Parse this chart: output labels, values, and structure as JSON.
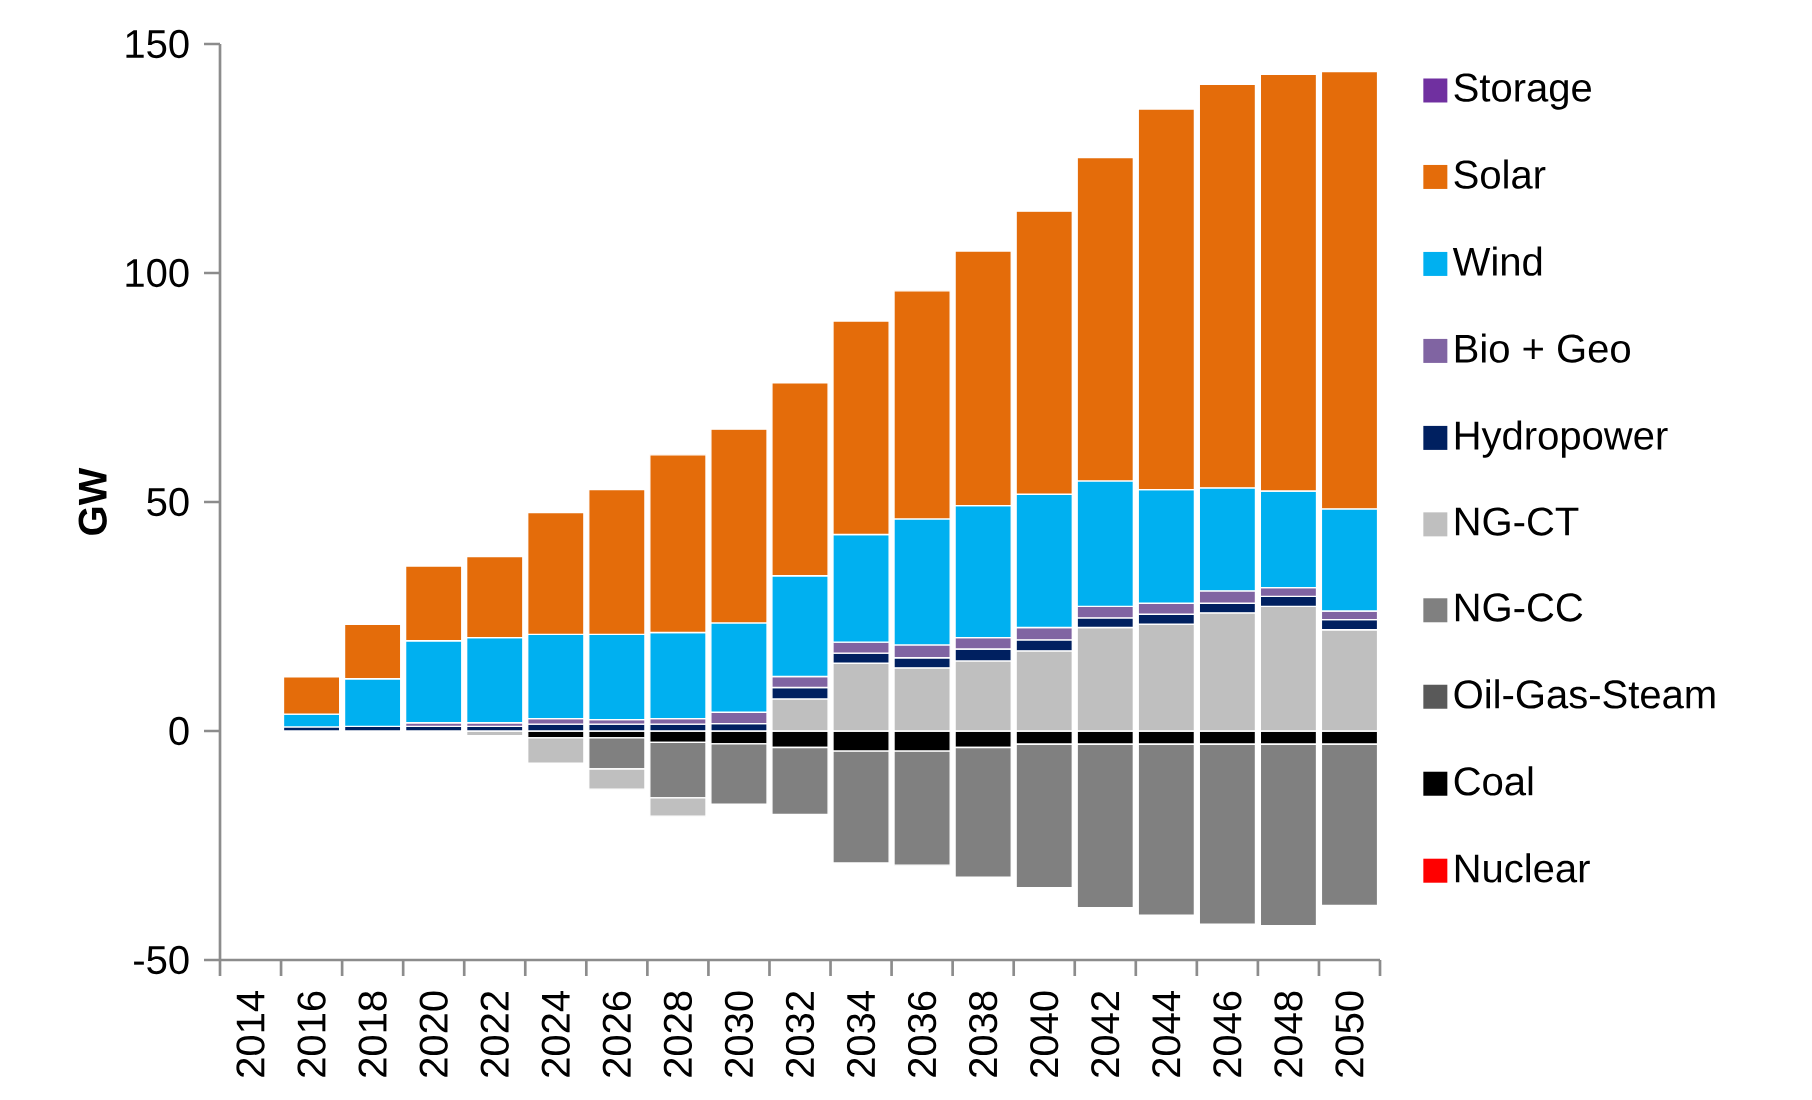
{
  "chart_data": {
    "type": "bar",
    "stacked": true,
    "ylabel": "GW",
    "categories": [
      "2014",
      "2016",
      "2018",
      "2020",
      "2022",
      "2024",
      "2026",
      "2028",
      "2030",
      "2032",
      "2034",
      "2036",
      "2038",
      "2040",
      "2042",
      "2044",
      "2046",
      "2048",
      "2050"
    ],
    "series": [
      {
        "name": "Nuclear",
        "color": "#ff0000",
        "values": [
          0,
          0,
          0,
          0,
          0,
          0,
          0,
          0,
          0,
          0,
          0,
          0,
          0,
          0,
          0,
          0,
          0,
          0,
          0
        ]
      },
      {
        "name": "Coal",
        "color": "#000000",
        "values": [
          0,
          0,
          0,
          0,
          0,
          -1.5,
          -1.5,
          -2.5,
          -2.8,
          -3.6,
          -4.4,
          -4.4,
          -3.6,
          -2.9,
          -2.9,
          -2.9,
          -2.9,
          -2.9,
          -2.9
        ]
      },
      {
        "name": "Oil-Gas-Steam",
        "color": "#595959",
        "values": [
          0,
          0,
          0,
          0,
          0,
          0,
          0,
          0,
          0,
          0,
          0,
          0,
          0,
          0,
          0,
          0,
          0,
          0,
          0
        ]
      },
      {
        "name": "NG-CC",
        "color": "#808080",
        "values": [
          0,
          0,
          0,
          0,
          0,
          0,
          -6.8,
          -12.1,
          -13.2,
          -14.6,
          -24.4,
          -24.9,
          -28.3,
          -31.3,
          -35.7,
          -37.3,
          -39.3,
          -39.6,
          -35.2
        ]
      },
      {
        "name": "NG-CT",
        "color": "#bfbfbf",
        "values": [
          0,
          0,
          0,
          0,
          -1.0,
          -5.5,
          -4.4,
          -4.0,
          0,
          7.0,
          14.8,
          13.8,
          15.3,
          17.5,
          22.6,
          23.3,
          25.8,
          27.2,
          22.1
        ]
      },
      {
        "name": "Hydropower",
        "color": "#002060",
        "values": [
          0,
          0.9,
          1.0,
          1.0,
          1.0,
          1.5,
          1.5,
          1.5,
          1.6,
          2.5,
          2.2,
          2.2,
          2.6,
          2.4,
          2.1,
          2.2,
          2.1,
          2.2,
          2.2
        ]
      },
      {
        "name": "Bio + Geo",
        "color": "#8064a2",
        "values": [
          0,
          0,
          0,
          0.8,
          0.8,
          1.2,
          1.0,
          1.2,
          2.5,
          2.4,
          2.4,
          2.8,
          2.5,
          2.7,
          2.5,
          2.4,
          2.7,
          1.9,
          1.9
        ]
      },
      {
        "name": "Wind",
        "color": "#00b0f0",
        "values": [
          0,
          2.8,
          10.4,
          17.9,
          18.6,
          18.4,
          18.6,
          18.8,
          19.5,
          22.0,
          23.5,
          27.5,
          28.8,
          29.1,
          27.4,
          24.8,
          22.5,
          21.1,
          22.3
        ]
      },
      {
        "name": "Solar",
        "color": "#e46c0a",
        "values": [
          0,
          8.1,
          11.9,
          16.3,
          17.7,
          26.6,
          31.6,
          38.8,
          42.3,
          42.1,
          46.6,
          49.8,
          55.6,
          61.8,
          70.6,
          83.1,
          88.1,
          91.0,
          95.5
        ]
      },
      {
        "name": "Storage",
        "color": "#7030a0",
        "values": [
          0,
          0,
          0,
          0,
          0,
          0,
          0,
          0,
          0,
          0,
          0,
          0,
          0,
          0,
          0,
          0,
          0,
          0,
          0
        ]
      }
    ],
    "ylim": [
      -50,
      150
    ],
    "yticks": [
      -50,
      0,
      50,
      100,
      150
    ],
    "legend": "right"
  }
}
